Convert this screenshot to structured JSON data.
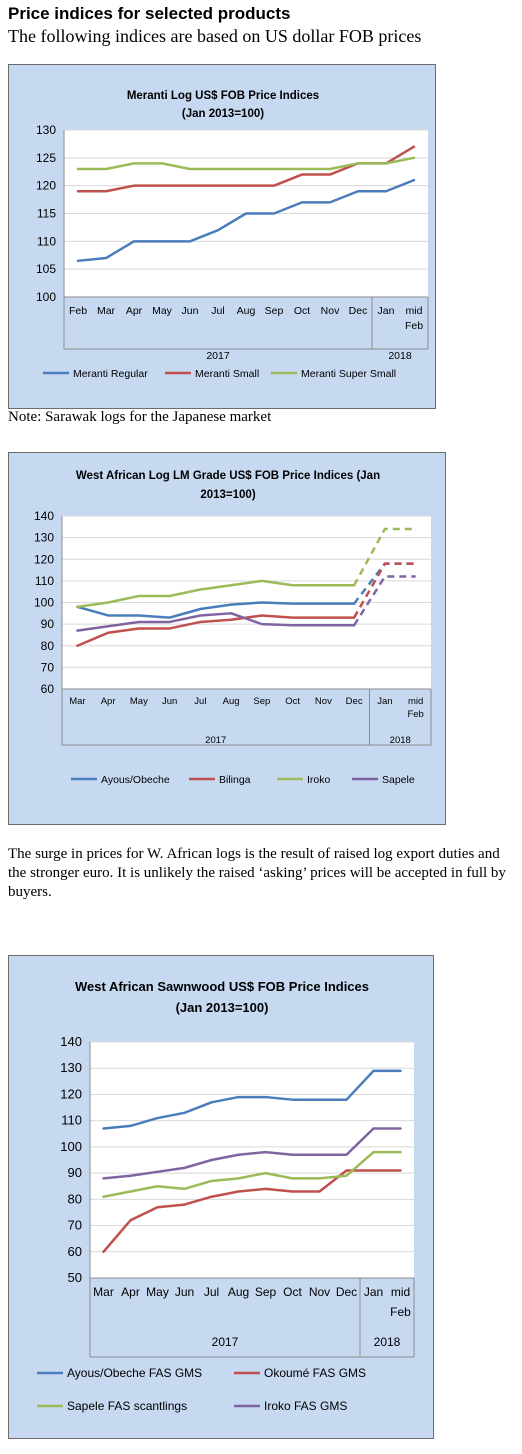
{
  "heading": "Price indices for selected products",
  "subheading": "The following indices are based on US dollar FOB prices",
  "note": "Note: Sarawak logs for the Japanese market",
  "paragraph": "The surge in prices for W. African logs is the result of raised log export duties and the stronger euro. It is unlikely the raised ‘asking’ prices will be accepted in full by buyers.",
  "chart_data": [
    {
      "type": "line",
      "title": [
        "Meranti Log US$ FOB Price Indices",
        "(Jan 2013=100)"
      ],
      "categories": [
        "Feb",
        "Mar",
        "Apr",
        "May",
        "Jun",
        "Jul",
        "Aug",
        "Sep",
        "Oct",
        "Nov",
        "Dec",
        "Jan",
        "mid Feb"
      ],
      "year_groups": [
        {
          "label": "2017",
          "from": 0,
          "to": 10
        },
        {
          "label": "2018",
          "from": 11,
          "to": 12
        }
      ],
      "ylim": [
        100,
        130
      ],
      "yticks": [
        100,
        105,
        110,
        115,
        120,
        125,
        130
      ],
      "legend_position": "bottom",
      "series": [
        {
          "name": "Meranti Regular",
          "color": "#4a7ebb",
          "values": [
            106.5,
            107,
            110,
            110,
            110,
            112,
            115,
            115,
            117,
            117,
            119,
            119,
            121
          ]
        },
        {
          "name": "Meranti Small",
          "color": "#c0504d",
          "values": [
            119,
            119,
            120,
            120,
            120,
            120,
            120,
            120,
            122,
            122,
            124,
            124,
            127
          ]
        },
        {
          "name": "Meranti Super Small",
          "color": "#9bbb59",
          "values": [
            123,
            123,
            124,
            124,
            123,
            123,
            123,
            123,
            123,
            123,
            124,
            124,
            125
          ]
        }
      ]
    },
    {
      "type": "line",
      "title": [
        "West African Log LM Grade US$ FOB Price Indices (Jan",
        "2013=100)"
      ],
      "categories": [
        "Mar",
        "Apr",
        "May",
        "Jun",
        "Jul",
        "Aug",
        "Sep",
        "Oct",
        "Nov",
        "Dec",
        "Jan",
        "mid Feb"
      ],
      "year_groups": [
        {
          "label": "2017",
          "from": 0,
          "to": 9
        },
        {
          "label": "2018",
          "from": 10,
          "to": 11
        }
      ],
      "ylim": [
        60,
        140
      ],
      "yticks": [
        60,
        70,
        80,
        90,
        100,
        110,
        120,
        130,
        140
      ],
      "legend_position": "bottom",
      "dashed_from_index": 9,
      "series": [
        {
          "name": "Ayous/Obeche",
          "color": "#4a7ebb",
          "values": [
            98,
            94,
            94,
            93,
            97,
            99,
            100,
            99.5,
            99.5,
            99.5,
            118,
            118
          ]
        },
        {
          "name": "Bilinga",
          "color": "#c0504d",
          "values": [
            80,
            86,
            88,
            88,
            91,
            92,
            94,
            93,
            93,
            93,
            118,
            118
          ]
        },
        {
          "name": "Iroko",
          "color": "#9bbb59",
          "values": [
            98,
            100,
            103,
            103,
            106,
            108,
            110,
            108,
            108,
            108,
            134,
            134
          ]
        },
        {
          "name": "Sapele",
          "color": "#8064a2",
          "values": [
            87,
            89,
            91,
            91,
            94,
            95,
            90,
            89.5,
            89.5,
            89.5,
            112,
            112
          ]
        }
      ]
    },
    {
      "type": "line",
      "title": [
        "West African Sawnwood US$ FOB Price Indices",
        "(Jan 2013=100)"
      ],
      "categories": [
        "Mar",
        "Apr",
        "May",
        "Jun",
        "Jul",
        "Aug",
        "Sep",
        "Oct",
        "Nov",
        "Dec",
        "Jan",
        "mid Feb"
      ],
      "year_groups": [
        {
          "label": "2017",
          "from": 0,
          "to": 9
        },
        {
          "label": "2018",
          "from": 10,
          "to": 11
        }
      ],
      "ylim": [
        50,
        140
      ],
      "yticks": [
        50,
        60,
        70,
        80,
        90,
        100,
        110,
        120,
        130,
        140
      ],
      "legend_position": "bottom",
      "series": [
        {
          "name": "Ayous/Obeche FAS GMS",
          "color": "#4a7ebb",
          "values": [
            107,
            108,
            111,
            113,
            117,
            119,
            119,
            118,
            118,
            118,
            129,
            129
          ]
        },
        {
          "name": "Okoumé FAS GMS",
          "color": "#c0504d",
          "values": [
            60,
            72,
            77,
            78,
            81,
            83,
            84,
            83,
            83,
            91,
            91,
            91
          ]
        },
        {
          "name": "Sapele FAS scantlings",
          "color": "#9bbb59",
          "values": [
            81,
            83,
            85,
            84,
            87,
            88,
            90,
            88,
            88,
            89,
            98,
            98
          ]
        },
        {
          "name": "Iroko FAS GMS",
          "color": "#8064a2",
          "values": [
            88,
            89,
            90.5,
            92,
            95,
            97,
            98,
            97,
            97,
            97,
            107,
            107
          ]
        }
      ]
    }
  ]
}
